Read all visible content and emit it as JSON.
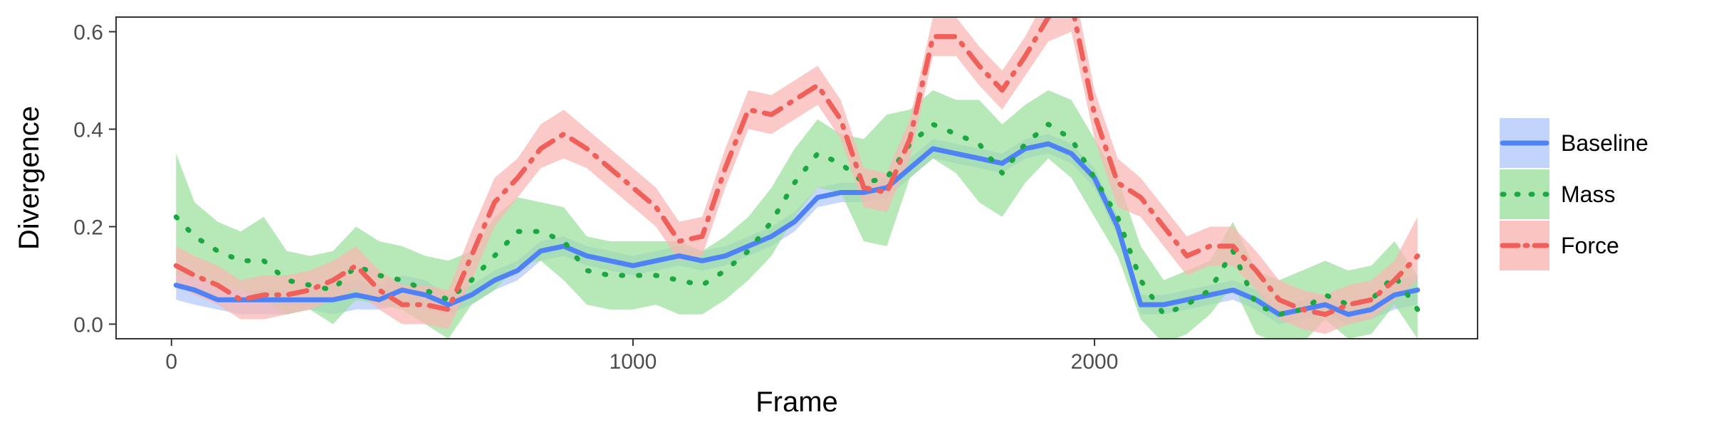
{
  "chart_data": {
    "type": "line",
    "title": "",
    "xlabel": "Frame",
    "ylabel": "Divergence",
    "xlim": [
      -120,
      2830
    ],
    "ylim": [
      -0.03,
      0.63
    ],
    "x_ticks": [
      0,
      1000,
      2000
    ],
    "y_ticks": [
      "0.0",
      "0.2",
      "0.4",
      "0.6"
    ],
    "grid": false,
    "legend_position": "right",
    "x": [
      10,
      50,
      100,
      150,
      200,
      250,
      300,
      350,
      400,
      450,
      500,
      550,
      600,
      650,
      700,
      750,
      800,
      850,
      900,
      950,
      1000,
      1050,
      1100,
      1150,
      1200,
      1250,
      1300,
      1350,
      1400,
      1450,
      1500,
      1550,
      1600,
      1650,
      1700,
      1750,
      1800,
      1850,
      1900,
      1950,
      2000,
      2050,
      2100,
      2150,
      2200,
      2250,
      2300,
      2350,
      2400,
      2450,
      2500,
      2550,
      2600,
      2650,
      2700
    ],
    "series": [
      {
        "name": "Baseline",
        "color": "#4f83f5",
        "band_color": "#b3c9fb",
        "dash": "solid",
        "values": [
          0.08,
          0.07,
          0.05,
          0.05,
          0.05,
          0.05,
          0.05,
          0.05,
          0.06,
          0.05,
          0.07,
          0.06,
          0.04,
          0.06,
          0.09,
          0.11,
          0.15,
          0.16,
          0.14,
          0.13,
          0.12,
          0.13,
          0.14,
          0.13,
          0.14,
          0.16,
          0.18,
          0.21,
          0.26,
          0.27,
          0.27,
          0.28,
          0.32,
          0.36,
          0.35,
          0.34,
          0.33,
          0.36,
          0.37,
          0.35,
          0.3,
          0.2,
          0.04,
          0.04,
          0.05,
          0.06,
          0.07,
          0.05,
          0.02,
          0.03,
          0.04,
          0.02,
          0.03,
          0.06,
          0.07
        ],
        "lower": [
          0.05,
          0.04,
          0.03,
          0.02,
          0.02,
          0.02,
          0.03,
          0.02,
          0.03,
          0.03,
          0.04,
          0.03,
          0.02,
          0.04,
          0.07,
          0.09,
          0.13,
          0.14,
          0.12,
          0.11,
          0.1,
          0.11,
          0.12,
          0.11,
          0.12,
          0.14,
          0.16,
          0.19,
          0.24,
          0.25,
          0.25,
          0.26,
          0.3,
          0.34,
          0.33,
          0.32,
          0.31,
          0.34,
          0.35,
          0.33,
          0.28,
          0.18,
          0.02,
          0.02,
          0.03,
          0.04,
          0.05,
          0.03,
          0.0,
          0.01,
          0.02,
          0.0,
          0.01,
          0.03,
          0.04
        ],
        "upper": [
          0.11,
          0.1,
          0.08,
          0.07,
          0.07,
          0.07,
          0.07,
          0.08,
          0.09,
          0.08,
          0.1,
          0.09,
          0.06,
          0.08,
          0.11,
          0.13,
          0.17,
          0.18,
          0.16,
          0.15,
          0.14,
          0.15,
          0.16,
          0.15,
          0.16,
          0.18,
          0.2,
          0.23,
          0.28,
          0.29,
          0.29,
          0.3,
          0.34,
          0.38,
          0.37,
          0.36,
          0.35,
          0.38,
          0.39,
          0.37,
          0.32,
          0.22,
          0.06,
          0.06,
          0.07,
          0.08,
          0.09,
          0.07,
          0.04,
          0.05,
          0.06,
          0.04,
          0.05,
          0.09,
          0.1
        ]
      },
      {
        "name": "Mass",
        "color": "#1ba843",
        "band_color": "#9be09d",
        "dash": "dotted",
        "values": [
          0.22,
          0.18,
          0.15,
          0.13,
          0.13,
          0.09,
          0.08,
          0.07,
          0.12,
          0.1,
          0.09,
          0.07,
          0.05,
          0.09,
          0.14,
          0.19,
          0.19,
          0.17,
          0.11,
          0.1,
          0.1,
          0.1,
          0.09,
          0.08,
          0.11,
          0.15,
          0.21,
          0.29,
          0.35,
          0.33,
          0.29,
          0.3,
          0.37,
          0.41,
          0.39,
          0.37,
          0.31,
          0.37,
          0.41,
          0.38,
          0.3,
          0.22,
          0.09,
          0.02,
          0.04,
          0.07,
          0.15,
          0.04,
          0.02,
          0.03,
          0.06,
          0.04,
          0.05,
          0.1,
          0.03
        ],
        "lower": [
          0.1,
          0.1,
          0.08,
          0.07,
          0.05,
          0.02,
          0.03,
          0.0,
          0.05,
          0.04,
          0.03,
          0.0,
          -0.03,
          0.04,
          0.07,
          0.12,
          0.13,
          0.09,
          0.04,
          0.03,
          0.03,
          0.04,
          0.02,
          0.02,
          0.05,
          0.09,
          0.14,
          0.22,
          0.28,
          0.27,
          0.17,
          0.16,
          0.3,
          0.34,
          0.31,
          0.25,
          0.22,
          0.29,
          0.34,
          0.3,
          0.22,
          0.14,
          0.01,
          -0.04,
          -0.02,
          0.02,
          0.08,
          -0.02,
          -0.04,
          -0.04,
          0.01,
          -0.03,
          -0.02,
          0.04,
          -0.03
        ],
        "upper": [
          0.35,
          0.25,
          0.21,
          0.19,
          0.22,
          0.15,
          0.14,
          0.15,
          0.2,
          0.17,
          0.16,
          0.14,
          0.13,
          0.15,
          0.22,
          0.26,
          0.25,
          0.24,
          0.18,
          0.17,
          0.17,
          0.17,
          0.17,
          0.15,
          0.18,
          0.22,
          0.28,
          0.36,
          0.42,
          0.39,
          0.38,
          0.43,
          0.44,
          0.48,
          0.46,
          0.46,
          0.41,
          0.45,
          0.48,
          0.46,
          0.38,
          0.3,
          0.16,
          0.09,
          0.11,
          0.13,
          0.21,
          0.11,
          0.09,
          0.11,
          0.13,
          0.11,
          0.12,
          0.17,
          0.1
        ]
      },
      {
        "name": "Force",
        "color": "#f0605b",
        "band_color": "#f9b5b3",
        "dash": "dashdot",
        "values": [
          0.12,
          0.1,
          0.08,
          0.05,
          0.06,
          0.06,
          0.07,
          0.09,
          0.12,
          0.07,
          0.04,
          0.04,
          0.03,
          0.14,
          0.25,
          0.3,
          0.36,
          0.39,
          0.36,
          0.32,
          0.28,
          0.24,
          0.17,
          0.18,
          0.32,
          0.44,
          0.43,
          0.46,
          0.49,
          0.42,
          0.28,
          0.27,
          0.38,
          0.59,
          0.59,
          0.53,
          0.48,
          0.55,
          0.63,
          0.66,
          0.43,
          0.29,
          0.26,
          0.2,
          0.14,
          0.16,
          0.16,
          0.11,
          0.05,
          0.03,
          0.02,
          0.04,
          0.05,
          0.09,
          0.14
        ],
        "lower": [
          0.08,
          0.06,
          0.04,
          0.01,
          0.01,
          0.02,
          0.03,
          0.05,
          0.07,
          0.03,
          0.0,
          0.0,
          -0.01,
          0.09,
          0.2,
          0.26,
          0.32,
          0.34,
          0.32,
          0.28,
          0.24,
          0.2,
          0.13,
          0.14,
          0.28,
          0.4,
          0.39,
          0.42,
          0.45,
          0.38,
          0.24,
          0.23,
          0.34,
          0.55,
          0.55,
          0.49,
          0.44,
          0.51,
          0.58,
          0.6,
          0.38,
          0.24,
          0.22,
          0.16,
          0.1,
          0.12,
          0.12,
          0.07,
          0.01,
          -0.01,
          -0.02,
          0.0,
          0.01,
          0.05,
          0.09
        ],
        "upper": [
          0.16,
          0.14,
          0.12,
          0.09,
          0.1,
          0.1,
          0.11,
          0.13,
          0.16,
          0.11,
          0.08,
          0.08,
          0.07,
          0.19,
          0.3,
          0.34,
          0.41,
          0.44,
          0.4,
          0.36,
          0.32,
          0.28,
          0.21,
          0.22,
          0.36,
          0.48,
          0.47,
          0.5,
          0.53,
          0.46,
          0.32,
          0.31,
          0.42,
          0.63,
          0.63,
          0.57,
          0.52,
          0.59,
          0.68,
          0.72,
          0.48,
          0.34,
          0.3,
          0.24,
          0.18,
          0.2,
          0.2,
          0.15,
          0.09,
          0.07,
          0.06,
          0.08,
          0.09,
          0.13,
          0.22
        ]
      }
    ]
  }
}
